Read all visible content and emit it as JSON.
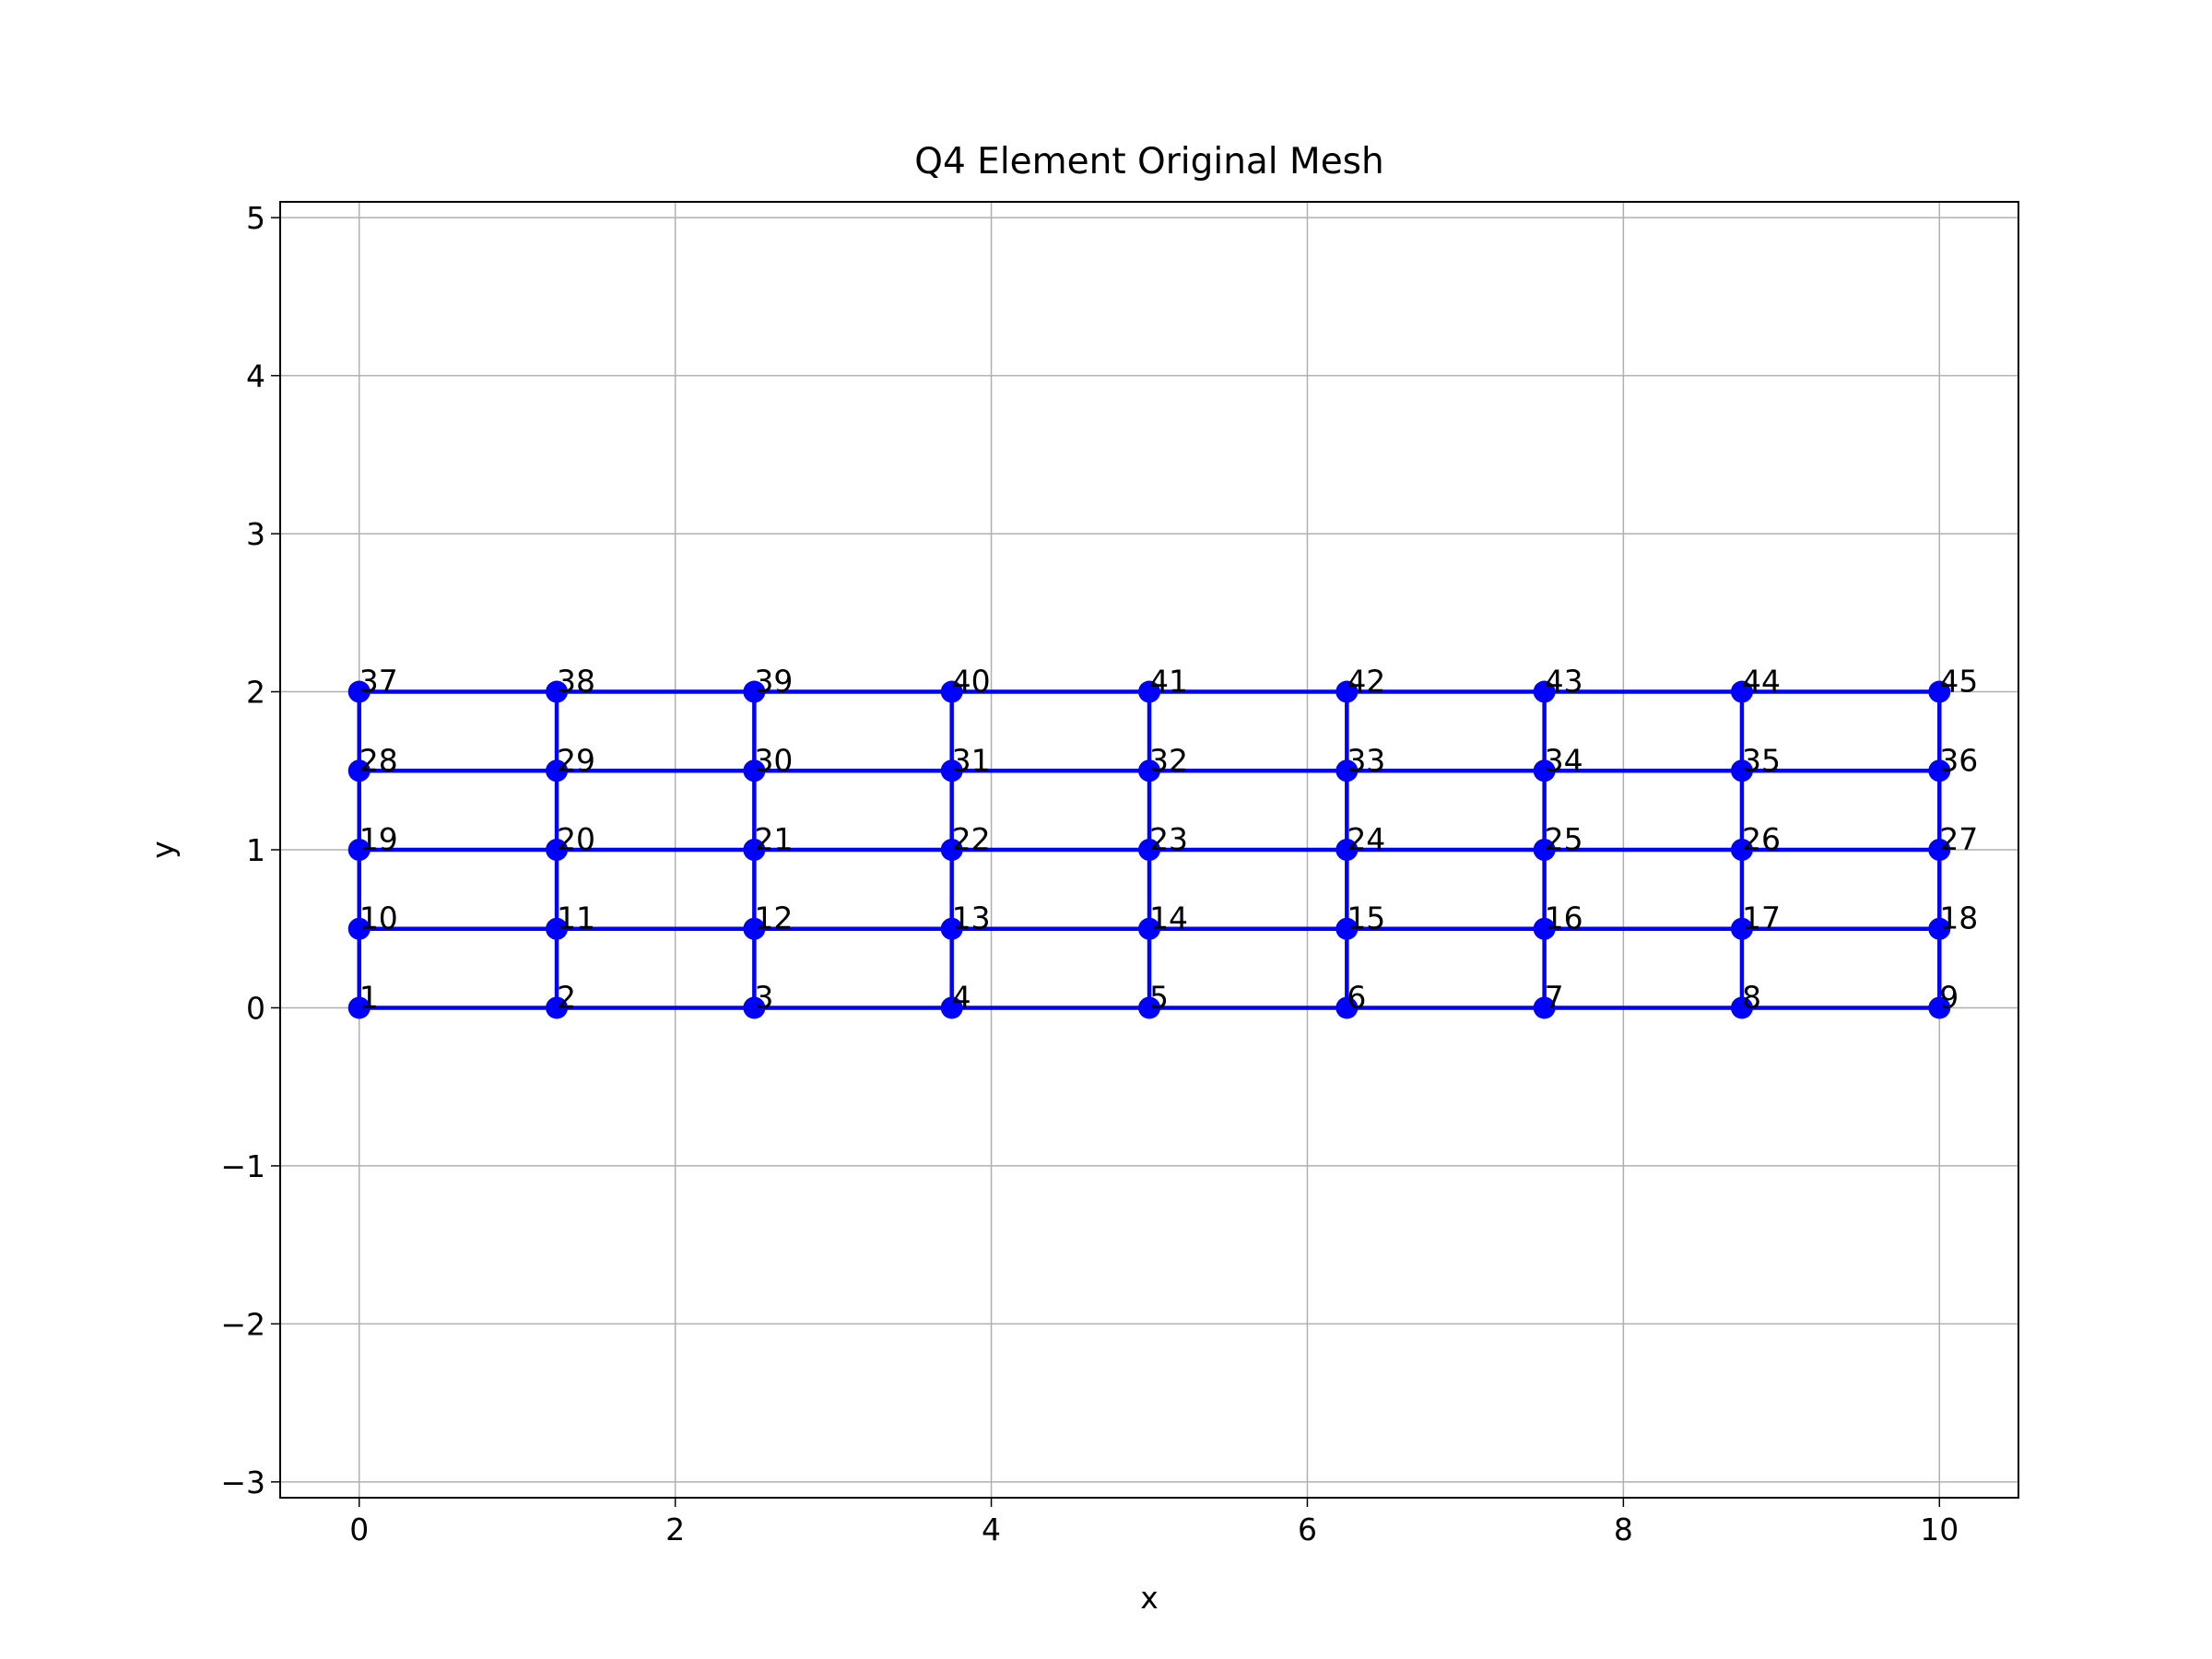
{
  "chart_data": {
    "type": "mesh",
    "title": "Q4 Element Original Mesh",
    "x_label": "x",
    "y_label": "y",
    "color": "#0000ff",
    "grid": true,
    "x": [
      0,
      1.25,
      2.5,
      3.75,
      5,
      6.25,
      7.5,
      8.75,
      10,
      0,
      1.25,
      2.5,
      3.75,
      5,
      6.25,
      7.5,
      8.75,
      10,
      0,
      1.25,
      2.5,
      3.75,
      5,
      6.25,
      7.5,
      8.75,
      10,
      0,
      1.25,
      2.5,
      3.75,
      5,
      6.25,
      7.5,
      8.75,
      10,
      0,
      1.25,
      2.5,
      3.75,
      5,
      6.25,
      7.5,
      8.75,
      10
    ],
    "y": [
      0,
      0,
      0,
      0,
      0,
      0,
      0,
      0,
      0,
      0.5,
      0.5,
      0.5,
      0.5,
      0.5,
      0.5,
      0.5,
      0.5,
      0.5,
      1,
      1,
      1,
      1,
      1,
      1,
      1,
      1,
      1,
      1.5,
      1.5,
      1.5,
      1.5,
      1.5,
      1.5,
      1.5,
      1.5,
      1.5,
      2,
      2,
      2,
      2,
      2,
      2,
      2,
      2,
      2
    ],
    "labels": [
      "1",
      "2",
      "3",
      "4",
      "5",
      "6",
      "7",
      "8",
      "9",
      "10",
      "11",
      "12",
      "13",
      "14",
      "15",
      "16",
      "17",
      "18",
      "19",
      "20",
      "21",
      "22",
      "23",
      "24",
      "25",
      "26",
      "27",
      "28",
      "29",
      "30",
      "31",
      "32",
      "33",
      "34",
      "35",
      "36",
      "37",
      "38",
      "39",
      "40",
      "41",
      "42",
      "43",
      "44",
      "45"
    ],
    "xlim": [
      -0.5,
      10.5
    ],
    "xticks": [
      0,
      2,
      4,
      6,
      8,
      10
    ],
    "ylim": [
      -3.1,
      5.1
    ],
    "yticks": [
      {
        "value": -3,
        "label": "−3"
      },
      {
        "value": -2,
        "label": "−2"
      },
      {
        "value": -1,
        "label": "−1"
      },
      0,
      1,
      2,
      3,
      4,
      5
    ]
  }
}
